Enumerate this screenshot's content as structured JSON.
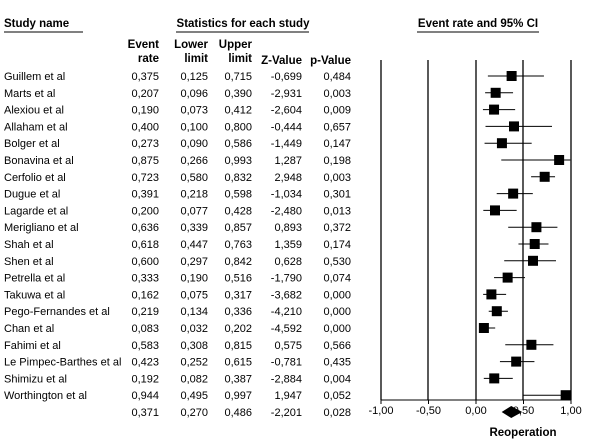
{
  "headers": {
    "study_name": "Study name",
    "statistics": "Statistics for each study",
    "plot": "Event rate and 95% CI",
    "columns": [
      [
        "Event",
        "rate"
      ],
      [
        "Lower",
        "limit"
      ],
      [
        "Upper",
        "limit"
      ],
      [
        "Z-Value"
      ],
      [
        "p-Value"
      ]
    ]
  },
  "chart_data": {
    "type": "forest",
    "xlabel": "Reoperation",
    "xlim": [
      -1.0,
      1.0
    ],
    "x_ticks": [
      "-1,00",
      "-0,50",
      "0,00",
      "0,50",
      "1,00"
    ],
    "x_tick_values": [
      -1.0,
      -0.5,
      0.0,
      0.5,
      1.0
    ],
    "studies": [
      {
        "name": "Guillem et al",
        "rate": "0,375",
        "lower": "0,125",
        "upper": "0,715",
        "z": "-0,699",
        "p": "0,484"
      },
      {
        "name": "Marts et al",
        "rate": "0,207",
        "lower": "0,096",
        "upper": "0,390",
        "z": "-2,931",
        "p": "0,003"
      },
      {
        "name": "Alexiou et al",
        "rate": "0,190",
        "lower": "0,073",
        "upper": "0,412",
        "z": "-2,604",
        "p": "0,009"
      },
      {
        "name": "Allaham et al",
        "rate": "0,400",
        "lower": "0,100",
        "upper": "0,800",
        "z": "-0,444",
        "p": "0,657"
      },
      {
        "name": "Bolger et al",
        "rate": "0,273",
        "lower": "0,090",
        "upper": "0,586",
        "z": "-1,449",
        "p": "0,147"
      },
      {
        "name": "Bonavina et al",
        "rate": "0,875",
        "lower": "0,266",
        "upper": "0,993",
        "z": "1,287",
        "p": "0,198"
      },
      {
        "name": "Cerfolio et al",
        "rate": "0,723",
        "lower": "0,580",
        "upper": "0,832",
        "z": "2,948",
        "p": "0,003"
      },
      {
        "name": "Dugue et al",
        "rate": "0,391",
        "lower": "0,218",
        "upper": "0,598",
        "z": "-1,034",
        "p": "0,301"
      },
      {
        "name": "Lagarde et al",
        "rate": "0,200",
        "lower": "0,077",
        "upper": "0,428",
        "z": "-2,480",
        "p": "0,013"
      },
      {
        "name": "Merigliano et al",
        "rate": "0,636",
        "lower": "0,339",
        "upper": "0,857",
        "z": "0,893",
        "p": "0,372"
      },
      {
        "name": "Shah et al",
        "rate": "0,618",
        "lower": "0,447",
        "upper": "0,763",
        "z": "1,359",
        "p": "0,174"
      },
      {
        "name": "Shen et al",
        "rate": "0,600",
        "lower": "0,297",
        "upper": "0,842",
        "z": "0,628",
        "p": "0,530"
      },
      {
        "name": "Petrella et al",
        "rate": "0,333",
        "lower": "0,190",
        "upper": "0,516",
        "z": "-1,790",
        "p": "0,074"
      },
      {
        "name": "Takuwa et al",
        "rate": "0,162",
        "lower": "0,075",
        "upper": "0,317",
        "z": "-3,682",
        "p": "0,000"
      },
      {
        "name": "Pego-Fernandes et al",
        "rate": "0,219",
        "lower": "0,134",
        "upper": "0,336",
        "z": "-4,210",
        "p": "0,000"
      },
      {
        "name": "Chan et al",
        "rate": "0,083",
        "lower": "0,032",
        "upper": "0,202",
        "z": "-4,592",
        "p": "0,000"
      },
      {
        "name": "Fahimi et al",
        "rate": "0,583",
        "lower": "0,308",
        "upper": "0,815",
        "z": "0,575",
        "p": "0,566"
      },
      {
        "name": "Le Pimpec-Barthes et al",
        "rate": "0,423",
        "lower": "0,252",
        "upper": "0,615",
        "z": "-0,781",
        "p": "0,435"
      },
      {
        "name": "Shimizu et al",
        "rate": "0,192",
        "lower": "0,082",
        "upper": "0,387",
        "z": "-2,884",
        "p": "0,004"
      },
      {
        "name": "Worthington et al",
        "rate": "0,944",
        "lower": "0,495",
        "upper": "0,997",
        "z": "1,947",
        "p": "0,052"
      }
    ],
    "pooled": {
      "name": "",
      "rate": "0,371",
      "lower": "0,270",
      "upper": "0,486",
      "z": "-2,201",
      "p": "0,028"
    }
  }
}
